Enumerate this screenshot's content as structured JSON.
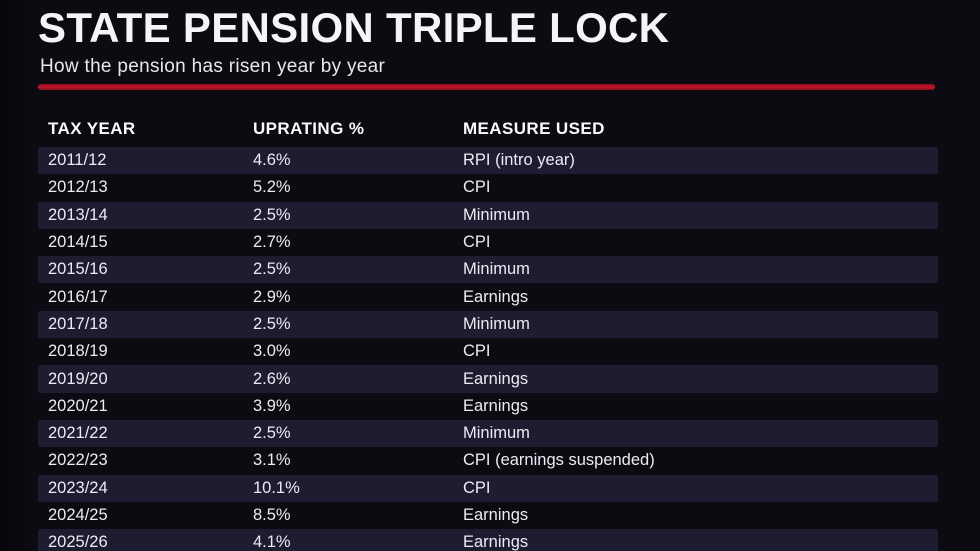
{
  "header": {
    "title": "STATE PENSION TRIPLE LOCK",
    "subtitle": "How the pension has risen year by year"
  },
  "colors": {
    "background": "#0c0b12",
    "row_stripe": "#1d1c31",
    "accent_red": "#b2141f",
    "title_text": "#f5f4f8",
    "body_text": "#edebf2"
  },
  "table": {
    "columns": [
      "TAX YEAR",
      "UPRATING %",
      "MEASURE USED"
    ],
    "rows": [
      {
        "tax_year": "2011/12",
        "uprating": "4.6%",
        "measure": "RPI (intro year)"
      },
      {
        "tax_year": "2012/13",
        "uprating": "5.2%",
        "measure": "CPI"
      },
      {
        "tax_year": "2013/14",
        "uprating": "2.5%",
        "measure": "Minimum"
      },
      {
        "tax_year": "2014/15",
        "uprating": "2.7%",
        "measure": "CPI"
      },
      {
        "tax_year": "2015/16",
        "uprating": "2.5%",
        "measure": "Minimum"
      },
      {
        "tax_year": "2016/17",
        "uprating": "2.9%",
        "measure": "Earnings"
      },
      {
        "tax_year": "2017/18",
        "uprating": "2.5%",
        "measure": "Minimum"
      },
      {
        "tax_year": "2018/19",
        "uprating": "3.0%",
        "measure": "CPI"
      },
      {
        "tax_year": "2019/20",
        "uprating": "2.6%",
        "measure": "Earnings"
      },
      {
        "tax_year": "2020/21",
        "uprating": "3.9%",
        "measure": "Earnings"
      },
      {
        "tax_year": "2021/22",
        "uprating": "2.5%",
        "measure": "Minimum"
      },
      {
        "tax_year": "2022/23",
        "uprating": "3.1%",
        "measure": "CPI (earnings suspended)"
      },
      {
        "tax_year": "2023/24",
        "uprating": "10.1%",
        "measure": "CPI"
      },
      {
        "tax_year": "2024/25",
        "uprating": "8.5%",
        "measure": "Earnings"
      },
      {
        "tax_year": "2025/26",
        "uprating": "4.1%",
        "measure": "Earnings"
      }
    ]
  },
  "chart_data": {
    "type": "table",
    "title": "STATE PENSION TRIPLE LOCK",
    "subtitle": "How the pension has risen year by year",
    "columns": [
      "TAX YEAR",
      "UPRATING %",
      "MEASURE USED"
    ],
    "categories": [
      "2011/12",
      "2012/13",
      "2013/14",
      "2014/15",
      "2015/16",
      "2016/17",
      "2017/18",
      "2018/19",
      "2019/20",
      "2020/21",
      "2021/22",
      "2022/23",
      "2023/24",
      "2024/25",
      "2025/26"
    ],
    "values": [
      4.6,
      5.2,
      2.5,
      2.7,
      2.5,
      2.9,
      2.5,
      3.0,
      2.6,
      3.9,
      2.5,
      3.1,
      10.1,
      8.5,
      4.1
    ],
    "measures": [
      "RPI (intro year)",
      "CPI",
      "Minimum",
      "CPI",
      "Minimum",
      "Earnings",
      "Minimum",
      "CPI",
      "Earnings",
      "Earnings",
      "Minimum",
      "CPI (earnings suspended)",
      "CPI",
      "Earnings",
      "Earnings"
    ],
    "layout": {
      "row_striping": true,
      "grid": false,
      "legend": "none"
    }
  }
}
